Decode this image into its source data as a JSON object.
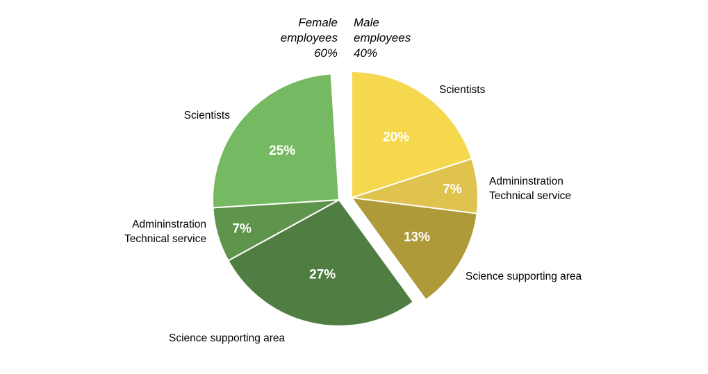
{
  "chart_data": {
    "type": "pie",
    "title": "",
    "groups": [
      {
        "name": "Male employees",
        "label_lines": [
          "Male",
          "employees",
          "40%"
        ],
        "total_percent": 40,
        "slices": [
          {
            "label_lines": [
              "Scientists"
            ],
            "value": 20,
            "value_label": "20%",
            "color": "#F5D84E"
          },
          {
            "label_lines": [
              "Admininstration",
              "Technical service"
            ],
            "value": 7,
            "value_label": "7%",
            "color": "#E0C24F"
          },
          {
            "label_lines": [
              "Science supporting area"
            ],
            "value": 13,
            "value_label": "13%",
            "color": "#AE9A38"
          }
        ]
      },
      {
        "name": "Female employees",
        "label_lines": [
          "Female",
          "employees",
          "60%"
        ],
        "total_percent": 60,
        "slices": [
          {
            "label_lines": [
              "Science supporting area"
            ],
            "value": 27,
            "value_label": "27%",
            "color": "#507E42"
          },
          {
            "label_lines": [
              "Admininstration",
              "Technical service"
            ],
            "value": 7,
            "value_label": "7%",
            "color": "#5F944C"
          },
          {
            "label_lines": [
              "Scientists"
            ],
            "value": 25,
            "value_label": "25%",
            "color": "#75B962"
          }
        ]
      }
    ]
  }
}
